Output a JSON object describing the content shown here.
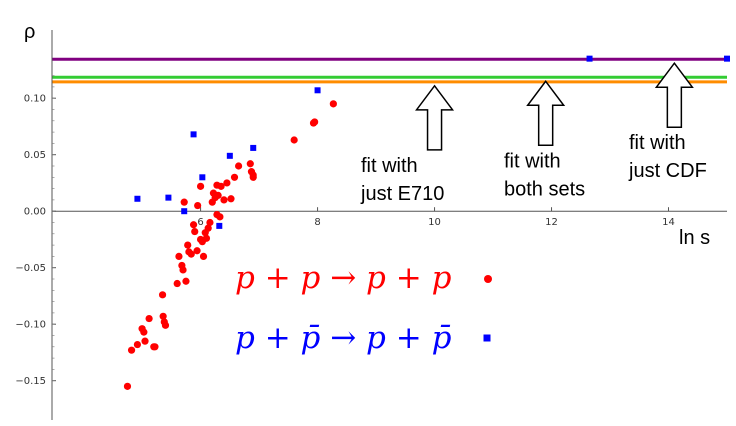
{
  "chart_data": {
    "type": "scatter",
    "title": "",
    "xlabel": "ln s",
    "ylabel": "ρ",
    "xlim": [
      4.4,
      15.0
    ],
    "ylim": [
      -0.16,
      0.14
    ],
    "x_ticks": [
      "6",
      "8",
      "10",
      "12",
      "14"
    ],
    "y_ticks": [
      "0.10",
      "0.05",
      "0.00",
      "−0.05",
      "−0.10",
      "−0.15"
    ],
    "grid": false,
    "colors": {
      "pp": "#ff0000",
      "ppbar": "#0000ff",
      "fit_cdf": "#800080",
      "fit_both": "#33cc33",
      "fit_e710": "#ff8c00"
    },
    "series": [
      {
        "name": "p + p → p + p",
        "marker": "circle",
        "x": [
          4.75,
          4.82,
          4.92,
          5.0,
          5.03,
          5.05,
          5.12,
          5.2,
          5.22,
          5.35,
          5.36,
          5.38,
          5.4,
          5.6,
          5.63,
          5.68,
          5.7,
          5.72,
          5.75,
          5.78,
          5.8,
          5.84,
          5.88,
          5.9,
          5.94,
          5.95,
          6.0,
          6.0,
          6.03,
          6.05,
          6.08,
          6.1,
          6.13,
          6.16,
          6.2,
          6.22,
          6.25,
          6.28,
          6.28,
          6.3,
          6.33,
          6.35,
          6.4,
          6.45,
          6.52,
          6.58,
          6.65,
          6.85,
          6.87,
          6.9,
          6.9,
          7.6,
          7.93,
          7.95,
          8.27
        ],
        "y": [
          -0.155,
          -0.123,
          -0.118,
          -0.104,
          -0.107,
          -0.115,
          -0.095,
          -0.12,
          -0.12,
          -0.074,
          -0.093,
          -0.098,
          -0.101,
          -0.064,
          -0.04,
          -0.048,
          -0.052,
          0.008,
          -0.062,
          -0.03,
          -0.036,
          -0.038,
          -0.012,
          -0.018,
          -0.035,
          0.005,
          0.022,
          -0.025,
          -0.027,
          -0.04,
          -0.019,
          -0.024,
          -0.015,
          -0.01,
          0.008,
          0.016,
          0.012,
          0.023,
          -0.003,
          0.014,
          -0.005,
          0.022,
          0.01,
          0.025,
          0.011,
          0.03,
          0.04,
          0.042,
          0.035,
          0.03,
          0.032,
          0.063,
          0.078,
          0.079,
          0.095
        ]
      },
      {
        "name": "p + p̄ → p + p̄",
        "marker": "square",
        "x": [
          4.92,
          5.45,
          5.72,
          5.88,
          6.03,
          6.32,
          6.5,
          6.9,
          8.0,
          12.65,
          15.0
        ],
        "y": [
          0.011,
          0.012,
          0.0,
          0.068,
          0.03,
          -0.013,
          0.049,
          0.056,
          0.107,
          0.135,
          0.135
        ]
      }
    ],
    "fit_lines": [
      {
        "label": "fit with just CDF",
        "y": 0.1345
      },
      {
        "label": "fit with both sets",
        "y": 0.1185
      },
      {
        "label": "fit with just E710",
        "y": 0.1145
      }
    ],
    "annotations": [
      {
        "lines": [
          "fit with",
          "just E710"
        ],
        "x": 10.0,
        "target": "fit with just E710"
      },
      {
        "lines": [
          "fit with",
          "both sets"
        ],
        "x": 11.9,
        "target": "fit with both sets"
      },
      {
        "lines": [
          "fit with",
          "just CDF"
        ],
        "x": 14.1,
        "target": "fit with just CDF"
      }
    ],
    "legend": {
      "placement": "lower-center",
      "items": [
        {
          "text": "p + p → p + p",
          "marker": "circle"
        },
        {
          "text": "p + p̄ → p + p̄",
          "marker": "square"
        }
      ]
    }
  }
}
